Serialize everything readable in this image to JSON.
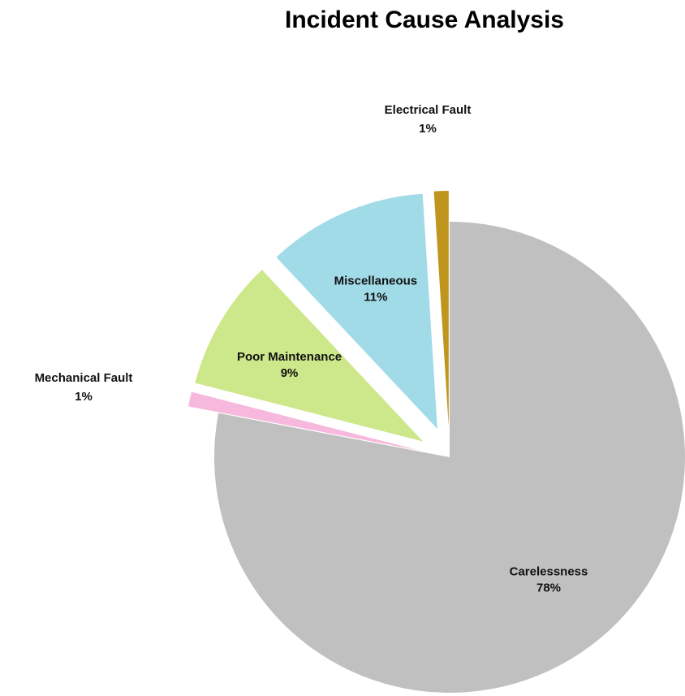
{
  "chart_data": {
    "type": "pie",
    "title": "Incident Cause Analysis",
    "slices": [
      {
        "label": "Carelessness",
        "value": 78,
        "value_label": "78%",
        "color": "#c0c0c0"
      },
      {
        "label": "Mechanical Fault",
        "value": 1,
        "value_label": "1%",
        "color": "#f6b8dc"
      },
      {
        "label": "Poor Maintenance",
        "value": 9,
        "value_label": "9%",
        "color": "#cde78b"
      },
      {
        "label": "Miscellaneous",
        "value": 11,
        "value_label": "11%",
        "color": "#a2dbe8"
      },
      {
        "label": "Electrical Fault",
        "value": 1,
        "value_label": "1%",
        "color": "#bf951e"
      }
    ],
    "exploded": [
      "Mechanical Fault",
      "Poor Maintenance",
      "Miscellaneous",
      "Electrical Fault"
    ],
    "start_angle": "12 o'clock",
    "direction": "clockwise",
    "legend": "none"
  }
}
